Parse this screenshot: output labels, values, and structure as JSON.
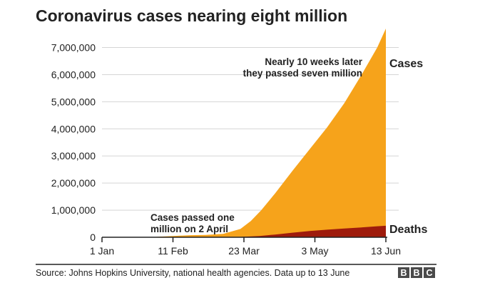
{
  "chart_data": {
    "type": "area",
    "title": "Coronavirus cases nearing eight million",
    "subtitle": "",
    "xlabel": "",
    "ylabel": "",
    "x_ticks": [
      "1 Jan",
      "11 Feb",
      "23 Mar",
      "3 May",
      "13 Jun"
    ],
    "x_tick_dates": [
      "2020-01-01",
      "2020-02-11",
      "2020-03-23",
      "2020-05-03",
      "2020-06-13"
    ],
    "y_ticks": [
      0,
      1000000,
      2000000,
      3000000,
      4000000,
      5000000,
      6000000,
      7000000
    ],
    "y_tick_labels": [
      "0",
      "1,000,000",
      "2,000,000",
      "3,000,000",
      "4,000,000",
      "5,000,000",
      "6,000,000",
      "7,000,000"
    ],
    "xlim": [
      "2020-01-01",
      "2020-06-13"
    ],
    "ylim": [
      0,
      7700000
    ],
    "grid": "horizontal",
    "legend": "direct labels at right end of series",
    "series": [
      {
        "name": "Cases",
        "color": "#f6a31b",
        "points": [
          [
            "2020-01-01",
            0
          ],
          [
            "2020-01-22",
            555
          ],
          [
            "2020-02-01",
            12000
          ],
          [
            "2020-02-11",
            45000
          ],
          [
            "2020-02-21",
            77000
          ],
          [
            "2020-03-01",
            88000
          ],
          [
            "2020-03-11",
            126000
          ],
          [
            "2020-03-21",
            305000
          ],
          [
            "2020-03-27",
            600000
          ],
          [
            "2020-04-02",
            1000000
          ],
          [
            "2020-04-10",
            1620000
          ],
          [
            "2020-04-20",
            2450000
          ],
          [
            "2020-04-30",
            3250000
          ],
          [
            "2020-05-10",
            4050000
          ],
          [
            "2020-05-20",
            4950000
          ],
          [
            "2020-05-30",
            6000000
          ],
          [
            "2020-06-08",
            7000000
          ],
          [
            "2020-06-13",
            7700000
          ]
        ]
      },
      {
        "name": "Deaths",
        "color": "#9e1b0c",
        "points": [
          [
            "2020-01-01",
            0
          ],
          [
            "2020-02-11",
            1100
          ],
          [
            "2020-03-01",
            3000
          ],
          [
            "2020-03-11",
            4600
          ],
          [
            "2020-03-21",
            13000
          ],
          [
            "2020-04-01",
            47000
          ],
          [
            "2020-04-10",
            100000
          ],
          [
            "2020-04-20",
            170000
          ],
          [
            "2020-04-30",
            230000
          ],
          [
            "2020-05-10",
            280000
          ],
          [
            "2020-05-20",
            325000
          ],
          [
            "2020-05-30",
            365000
          ],
          [
            "2020-06-08",
            405000
          ],
          [
            "2020-06-13",
            425000
          ]
        ]
      }
    ],
    "annotations": [
      {
        "lines": [
          "Nearly 10 weeks later",
          "they passed seven million"
        ]
      },
      {
        "lines": [
          "Cases passed one",
          "million on 2 April"
        ]
      }
    ],
    "source": "Source: Johns Hopkins University, national health agencies. Data up to 13 June",
    "logo_letters": [
      "B",
      "B",
      "C"
    ]
  }
}
